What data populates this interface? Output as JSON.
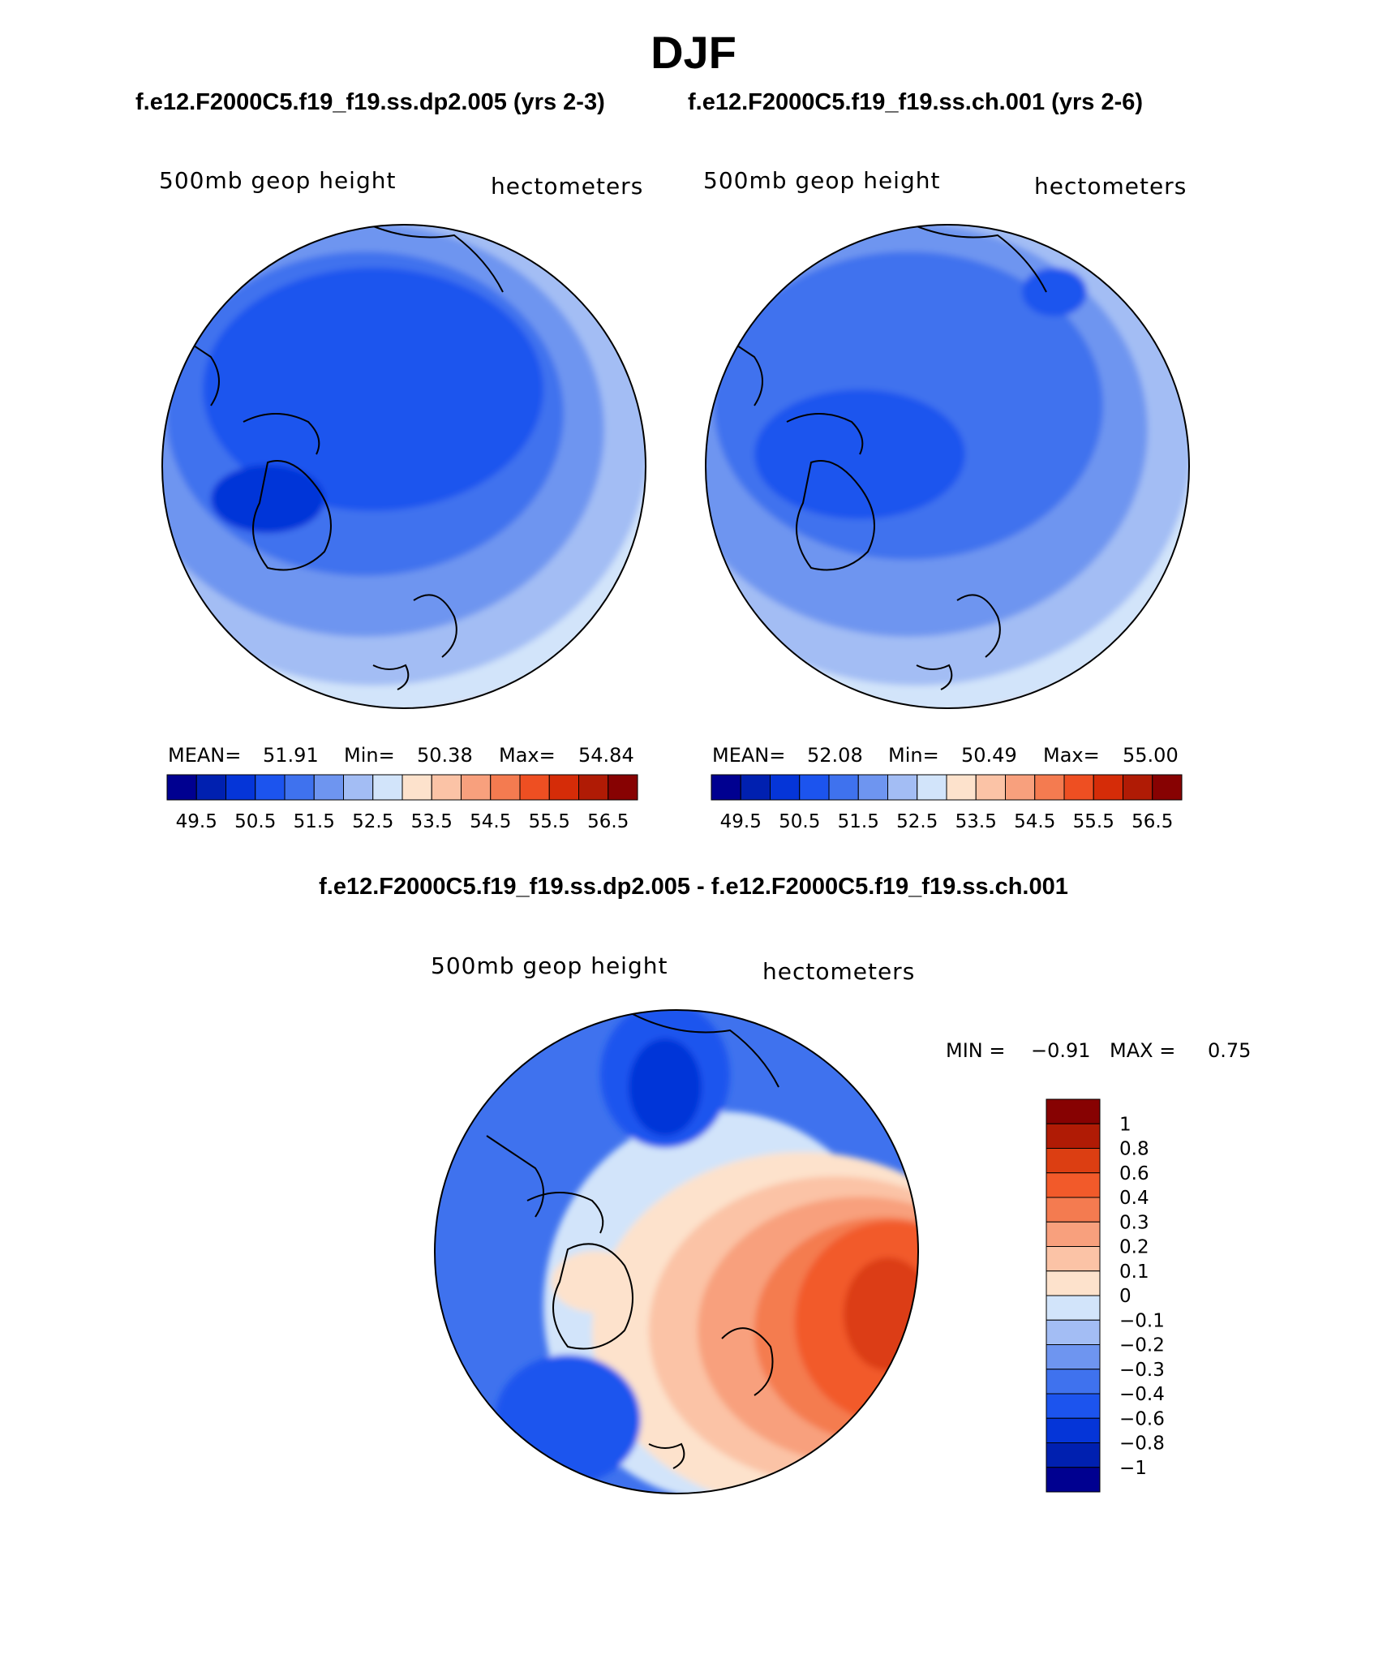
{
  "figure": {
    "title": "DJF",
    "subtitle_left": "f.e12.F2000C5.f19_f19.ss.dp2.005 (yrs 2-3)",
    "subtitle_right": "f.e12.F2000C5.f19_f19.ss.ch.001 (yrs 2-6)",
    "diff_title": "f.e12.F2000C5.f19_f19.ss.dp2.005 - f.e12.F2000C5.f19_f19.ss.ch.001"
  },
  "panel_left": {
    "variable": "500mb geop height",
    "units": "hectometers",
    "mean_label": "MEAN=",
    "mean_value": "51.91",
    "min_label": "Min=",
    "min_value": "50.38",
    "max_label": "Max=",
    "max_value": "54.84"
  },
  "panel_right": {
    "variable": "500mb geop height",
    "units": "hectometers",
    "mean_label": "MEAN=",
    "mean_value": "52.08",
    "min_label": "Min=",
    "min_value": "50.49",
    "max_label": "Max=",
    "max_value": "55.00"
  },
  "panel_diff": {
    "variable": "500mb geop height",
    "units": "hectometers",
    "min_label": "MIN =",
    "min_value": "−0.91",
    "max_label": "MAX =",
    "max_value": "0.75"
  },
  "colorbar_main": {
    "colors": [
      "#000090",
      "#0020b0",
      "#0535d8",
      "#1c54ee",
      "#3f72ee",
      "#6e95f0",
      "#a3bdf4",
      "#d2e4fa",
      "#fde2cc",
      "#fbc3a6",
      "#f8a07d",
      "#f47b50",
      "#ee4f22",
      "#d52c08",
      "#b01b05",
      "#870202"
    ],
    "tick_labels": [
      "49.5",
      "50.5",
      "51.5",
      "52.5",
      "53.5",
      "54.5",
      "55.5",
      "56.5"
    ]
  },
  "colorbar_diff": {
    "colors": [
      "#870202",
      "#b01b05",
      "#dc3e12",
      "#f25a2a",
      "#f47b50",
      "#f8a07d",
      "#fbc3a6",
      "#fde2cc",
      "#d2e4fa",
      "#a3bdf4",
      "#6e95f0",
      "#3f72ee",
      "#1c54ee",
      "#0535d8",
      "#0020b0",
      "#000090"
    ],
    "tick_labels": [
      "1",
      "0.8",
      "0.6",
      "0.4",
      "0.3",
      "0.2",
      "0.1",
      "0",
      "−0.1",
      "−0.2",
      "−0.3",
      "−0.4",
      "−0.6",
      "−0.8",
      "−1"
    ]
  },
  "map_colors": {
    "outline": "#000000",
    "coast": "#000000"
  }
}
